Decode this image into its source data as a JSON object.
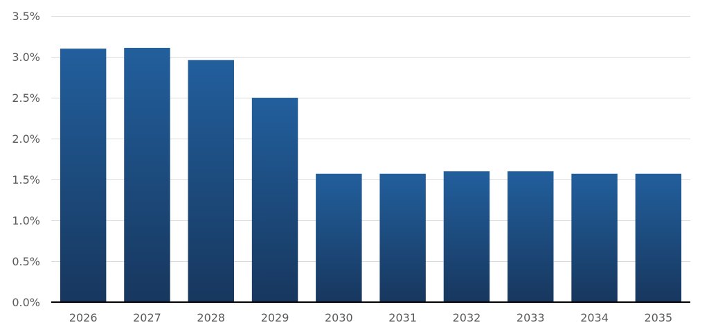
{
  "chart_data": {
    "type": "bar",
    "title": "",
    "xlabel": "",
    "ylabel": "",
    "categories": [
      "2026",
      "2027",
      "2028",
      "2029",
      "2030",
      "2031",
      "2032",
      "2033",
      "2034",
      "2035"
    ],
    "values": [
      3.1,
      3.11,
      2.96,
      2.5,
      1.57,
      1.57,
      1.6,
      1.6,
      1.57,
      1.57
    ],
    "ylim": [
      0,
      3.5
    ],
    "yticks": [
      0,
      0.5,
      1.0,
      1.5,
      2.0,
      2.5,
      3.0,
      3.5
    ],
    "ytick_labels": [
      "0.0%",
      "0.5%",
      "1.0%",
      "1.5%",
      "2.0%",
      "2.5%",
      "3.0%",
      "3.5%"
    ],
    "grid": true,
    "legend": "none",
    "colors": {
      "bar_top": "#225f9d",
      "bar_bottom": "#17375e",
      "grid": "#d9d9d9",
      "axis": "#000000",
      "tick_text": "#595959"
    }
  }
}
